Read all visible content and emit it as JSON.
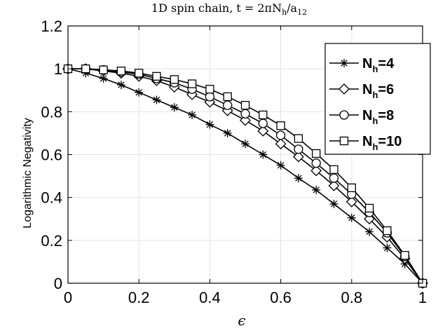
{
  "chart_data": {
    "type": "line",
    "title": "1D spin chain, t = 2πN_h/a_12",
    "title_parts": {
      "prefix": "1D spin chain, t = 2πN",
      "sub1": "h",
      "mid": "/a",
      "sub2": "12"
    },
    "xlabel": "ϵ",
    "ylabel": "Logarithmic Negativity",
    "xlim": [
      0,
      1
    ],
    "ylim": [
      0,
      1.2
    ],
    "xticks": [
      0,
      0.2,
      0.4,
      0.6,
      0.8,
      1
    ],
    "xtick_labels": [
      "0",
      "0.2",
      "0.4",
      "0.6",
      "0.8",
      "1"
    ],
    "yticks": [
      0,
      0.2,
      0.4,
      0.6,
      0.8,
      1,
      1.2
    ],
    "ytick_labels": [
      "0",
      "0.2",
      "0.4",
      "0.6",
      "0.8",
      "1",
      "1.2"
    ],
    "grid": true,
    "legend_position": "top-right",
    "line_color": "#000000",
    "x": [
      0,
      0.05,
      0.1,
      0.15,
      0.2,
      0.25,
      0.3,
      0.35,
      0.4,
      0.45,
      0.5,
      0.55,
      0.6,
      0.65,
      0.7,
      0.75,
      0.8,
      0.85,
      0.9,
      0.95,
      1
    ],
    "series": [
      {
        "name": "N_h=4",
        "label_main": "N",
        "label_sub": "h",
        "label_rest": "=4",
        "marker": "star",
        "values": [
          1.0,
          0.98,
          0.955,
          0.925,
          0.89,
          0.855,
          0.82,
          0.785,
          0.74,
          0.7,
          0.65,
          0.6,
          0.55,
          0.49,
          0.435,
          0.37,
          0.305,
          0.24,
          0.165,
          0.09,
          0.0
        ]
      },
      {
        "name": "N_h=6",
        "label_main": "N",
        "label_sub": "h",
        "label_rest": "=6",
        "marker": "diamond",
        "values": [
          1.0,
          1.0,
          0.99,
          0.98,
          0.965,
          0.945,
          0.915,
          0.88,
          0.845,
          0.805,
          0.76,
          0.71,
          0.65,
          0.59,
          0.525,
          0.455,
          0.38,
          0.3,
          0.215,
          0.115,
          0.0
        ]
      },
      {
        "name": "N_h=8",
        "label_main": "N",
        "label_sub": "h",
        "label_rest": "=8",
        "marker": "circle",
        "values": [
          1.0,
          1.0,
          0.995,
          0.985,
          0.975,
          0.955,
          0.935,
          0.905,
          0.87,
          0.83,
          0.79,
          0.745,
          0.69,
          0.625,
          0.56,
          0.49,
          0.415,
          0.33,
          0.235,
          0.125,
          0.0
        ]
      },
      {
        "name": "N_h=10",
        "label_main": "N",
        "label_sub": "h",
        "label_rest": "=10",
        "marker": "square",
        "values": [
          1.0,
          1.0,
          0.995,
          0.99,
          0.98,
          0.965,
          0.95,
          0.93,
          0.905,
          0.87,
          0.83,
          0.785,
          0.735,
          0.675,
          0.605,
          0.53,
          0.445,
          0.35,
          0.245,
          0.13,
          0.0
        ]
      }
    ]
  }
}
